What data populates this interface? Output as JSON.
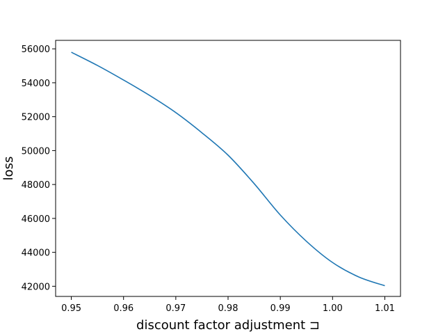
{
  "chart_data": {
    "type": "line",
    "title": "",
    "xlabel": "discount factor adjustment ⊐",
    "ylabel": "loss",
    "xlim": [
      0.947,
      1.013
    ],
    "ylim": [
      41400,
      56500
    ],
    "xticks": [
      0.95,
      0.96,
      0.97,
      0.98,
      0.99,
      1.0,
      1.01
    ],
    "xtick_labels": [
      "0.95",
      "0.96",
      "0.97",
      "0.98",
      "0.99",
      "1.00",
      "1.01"
    ],
    "yticks": [
      42000,
      44000,
      46000,
      48000,
      50000,
      52000,
      54000,
      56000
    ],
    "ytick_labels": [
      "42000",
      "44000",
      "46000",
      "48000",
      "50000",
      "52000",
      "54000",
      "56000"
    ],
    "grid": false,
    "series": [
      {
        "color": "#1f77b4",
        "x": [
          0.95,
          0.955,
          0.96,
          0.965,
          0.97,
          0.975,
          0.98,
          0.985,
          0.99,
          0.995,
          1.0,
          1.005,
          1.01
        ],
        "y": [
          55800,
          55020,
          54160,
          53250,
          52240,
          51050,
          49730,
          48050,
          46200,
          44650,
          43400,
          42550,
          42030
        ]
      }
    ]
  }
}
